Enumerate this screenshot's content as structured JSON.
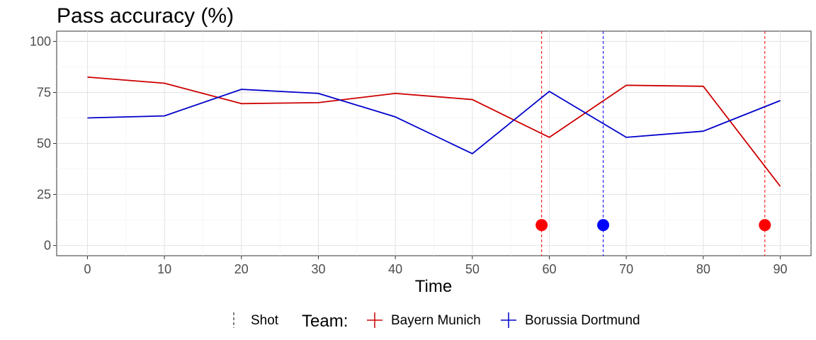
{
  "chart_data": {
    "type": "line",
    "title": "Pass accuracy (%)",
    "xlabel": "Time",
    "ylabel": "",
    "xlim": [
      -4,
      94
    ],
    "ylim": [
      -5,
      105
    ],
    "x_ticks": [
      0,
      10,
      20,
      30,
      40,
      50,
      60,
      70,
      80,
      90
    ],
    "y_ticks": [
      0,
      25,
      50,
      75,
      100
    ],
    "grid": true,
    "x": [
      0,
      10,
      20,
      30,
      40,
      50,
      60,
      70,
      80,
      90
    ],
    "series": [
      {
        "name": "Bayern Munich",
        "color": "#cc0000",
        "values": [
          82.5,
          79.5,
          69.5,
          70,
          74.5,
          71.5,
          53,
          78.5,
          78,
          29
        ]
      },
      {
        "name": "Borussia Dortmund",
        "color": "#0000cc",
        "values": [
          62.5,
          63.5,
          76.5,
          74.5,
          63,
          45,
          75.5,
          53,
          56,
          71
        ]
      }
    ],
    "shots": [
      {
        "team": "Bayern Munich",
        "time": 59,
        "y": 10,
        "color": "#ff0000"
      },
      {
        "team": "Borussia Dortmund",
        "time": 67,
        "y": 10,
        "color": "#0000ff"
      },
      {
        "team": "Bayern Munich",
        "time": 88,
        "y": 10,
        "color": "#ff0000"
      }
    ],
    "legend": {
      "position": "bottom",
      "shot_label": "Shot",
      "team_title": "Team:",
      "entries": [
        {
          "label": "Bayern Munich",
          "color": "#cc0000"
        },
        {
          "label": "Borussia Dortmund",
          "color": "#0000cc"
        }
      ]
    }
  }
}
